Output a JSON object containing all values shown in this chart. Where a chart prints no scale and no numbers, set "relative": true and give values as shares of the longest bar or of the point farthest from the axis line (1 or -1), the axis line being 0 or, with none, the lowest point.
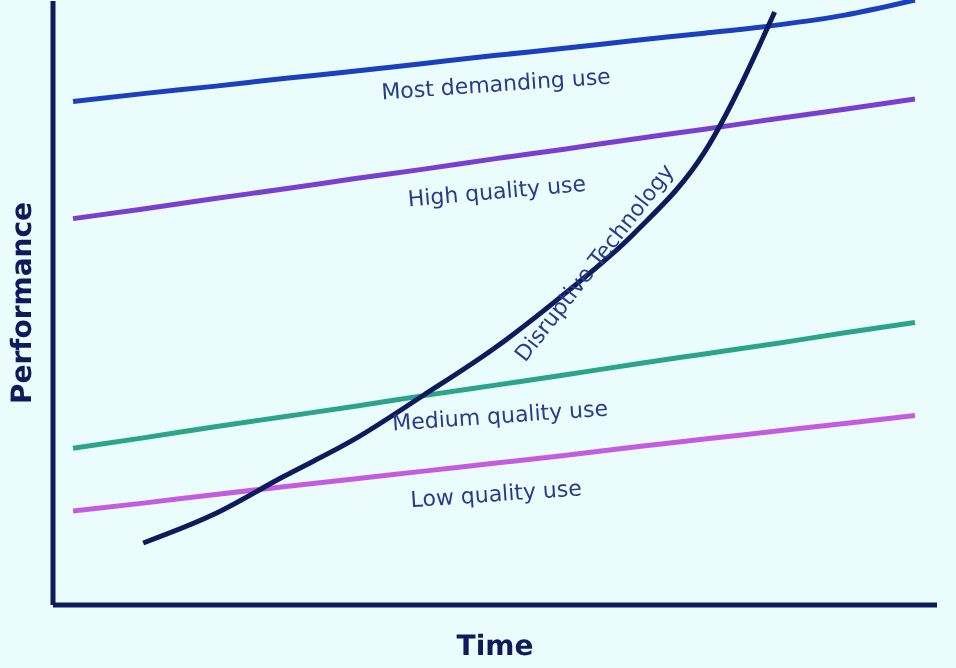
{
  "chart_data": {
    "type": "line",
    "relative": true,
    "xlabel": "Time",
    "ylabel": "Performance",
    "grid": false,
    "legend": false,
    "marker": "none",
    "line_style": "solid",
    "categories": [
      null,
      null,
      null,
      null,
      null,
      null,
      null,
      null,
      null,
      null,
      null,
      null,
      null
    ],
    "series": [
      {
        "name": "Most demanding use",
        "color": "#1a3fbf",
        "values": [
          0.832,
          0.845,
          0.857,
          0.87,
          0.882,
          0.895,
          0.908,
          0.92,
          0.933,
          0.945,
          0.958,
          0.975,
          1.0
        ]
      },
      {
        "name": "High quality use",
        "color": "#7a3fd0",
        "values": [
          0.638,
          0.654,
          0.671,
          0.687,
          0.704,
          0.72,
          0.737,
          0.753,
          0.77,
          0.786,
          0.803,
          0.819,
          0.836
        ]
      },
      {
        "name": "Medium quality use",
        "color": "#2aa58a",
        "values": [
          0.258,
          0.275,
          0.293,
          0.31,
          0.327,
          0.345,
          0.362,
          0.379,
          0.397,
          0.414,
          0.431,
          0.449,
          0.466
        ]
      },
      {
        "name": "Low quality use",
        "color": "#c35ce0",
        "values": [
          0.154,
          0.167,
          0.181,
          0.194,
          0.207,
          0.22,
          0.233,
          0.246,
          0.26,
          0.273,
          0.286,
          0.299,
          0.312
        ]
      },
      {
        "name": "Disruptive Technology",
        "color": "#0d1a5c",
        "values": [
          null,
          0.101,
          0.148,
          0.211,
          0.272,
          0.346,
          0.423,
          0.513,
          0.614,
          0.748,
          0.98,
          null,
          null
        ]
      }
    ]
  }
}
